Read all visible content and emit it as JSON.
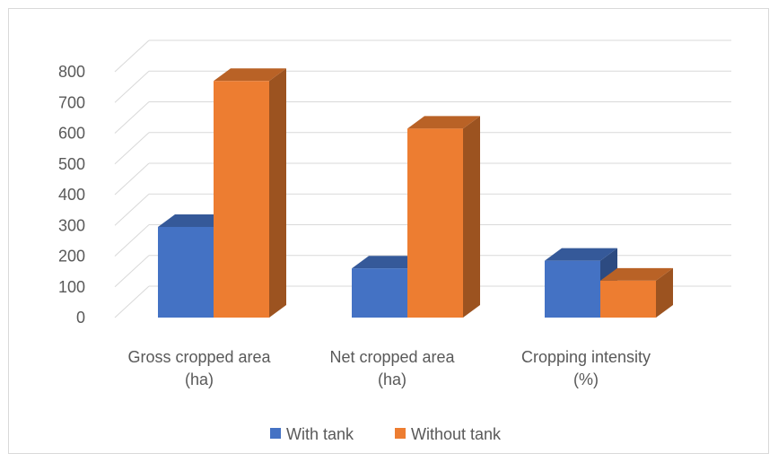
{
  "chart_data": {
    "type": "bar",
    "categories": [
      [
        "Gross cropped area",
        "(ha)"
      ],
      [
        "Net cropped area",
        "(ha)"
      ],
      [
        "Cropping intensity",
        "(%)"
      ]
    ],
    "series": [
      {
        "name": "With tank",
        "values": [
          295,
          160,
          185
        ],
        "color": "#4472C4"
      },
      {
        "name": "Without tank",
        "values": [
          770,
          615,
          120
        ],
        "color": "#ED7D31"
      }
    ],
    "ylim": [
      0,
      800
    ],
    "yticks": [
      "0",
      "100",
      "200",
      "300",
      "400",
      "500",
      "600",
      "700",
      "800"
    ],
    "grid": true,
    "legend": "bottom",
    "style": "3d-clustered-column"
  }
}
